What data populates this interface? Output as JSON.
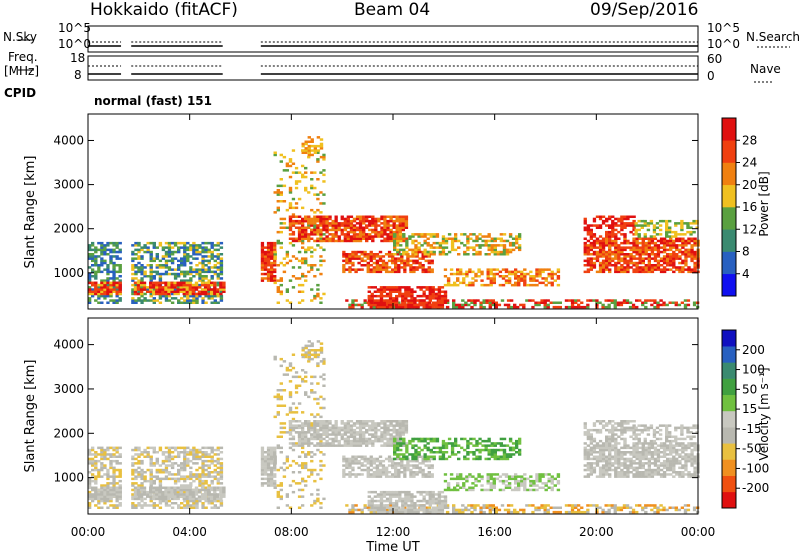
{
  "header": {
    "station": "Hokkaido (fitACF)",
    "beam": "Beam 04",
    "date": "09/Sep/2016"
  },
  "strip_labels": {
    "nsky": "N.Sky",
    "nsky_top": "10^5",
    "nsky_bottom": "10^0",
    "nsearch": "N.Search",
    "nsearch_top": "10^5",
    "nsearch_bottom": "10^0",
    "freq_line1": "Freq.",
    "freq_line2": "[MHz]",
    "freq_top": "18",
    "freq_bottom": "8",
    "nave": "Nave",
    "nave_top": "60",
    "nave_bottom": "0",
    "cpid": "CPID",
    "cpid_value": "normal (fast) 151"
  },
  "colors": {
    "power_scale": [
      "#1010f0",
      "#2860c0",
      "#3a8a70",
      "#5aa040",
      "#f0c020",
      "#f08010",
      "#f04010",
      "#e01010"
    ],
    "velocity_scale": [
      "#e01010",
      "#f05010",
      "#f09020",
      "#e8c040",
      "#b8b8b0",
      "#c8c8c0",
      "#70c040",
      "#40a040",
      "#3a8a70",
      "#2860c0",
      "#1010c0"
    ]
  },
  "chart_data": [
    {
      "type": "heatmap",
      "panel": "power",
      "ylabel": "Slant Range [km]",
      "colorbar_label": "Power [dB]",
      "colorbar_ticks": [
        "4",
        "8",
        "12",
        "16",
        "20",
        "24",
        "28"
      ],
      "ylim": [
        180,
        4600
      ],
      "yticks": [
        1000,
        2000,
        3000,
        4000
      ],
      "xlim_hours": [
        0,
        24
      ],
      "xticks_hours": [
        0,
        4,
        8,
        12,
        16,
        20,
        24
      ],
      "xtick_labels": [
        "00:00",
        "04:00",
        "08:00",
        "12:00",
        "16:00",
        "20:00",
        "00:00"
      ],
      "data_gaps_hours": [
        [
          1.3,
          1.7
        ],
        [
          5.3,
          6.8
        ]
      ]
    },
    {
      "type": "heatmap",
      "panel": "velocity",
      "ylabel": "Slant Range [km]",
      "xlabel": "Time UT",
      "colorbar_label": "Velocity [m s⁻¹]",
      "colorbar_ticks": [
        "200",
        "100",
        "50",
        "15",
        "-15",
        "-50",
        "-100",
        "-200"
      ],
      "ylim": [
        180,
        4600
      ],
      "yticks": [
        1000,
        2000,
        3000,
        4000
      ],
      "xlim_hours": [
        0,
        24
      ],
      "xticks_hours": [
        0,
        4,
        8,
        12,
        16,
        20,
        24
      ],
      "xtick_labels": [
        "00:00",
        "04:00",
        "08:00",
        "12:00",
        "16:00",
        "20:00",
        "00:00"
      ],
      "data_gaps_hours": [
        [
          1.3,
          1.7
        ],
        [
          5.3,
          6.8
        ]
      ]
    }
  ]
}
